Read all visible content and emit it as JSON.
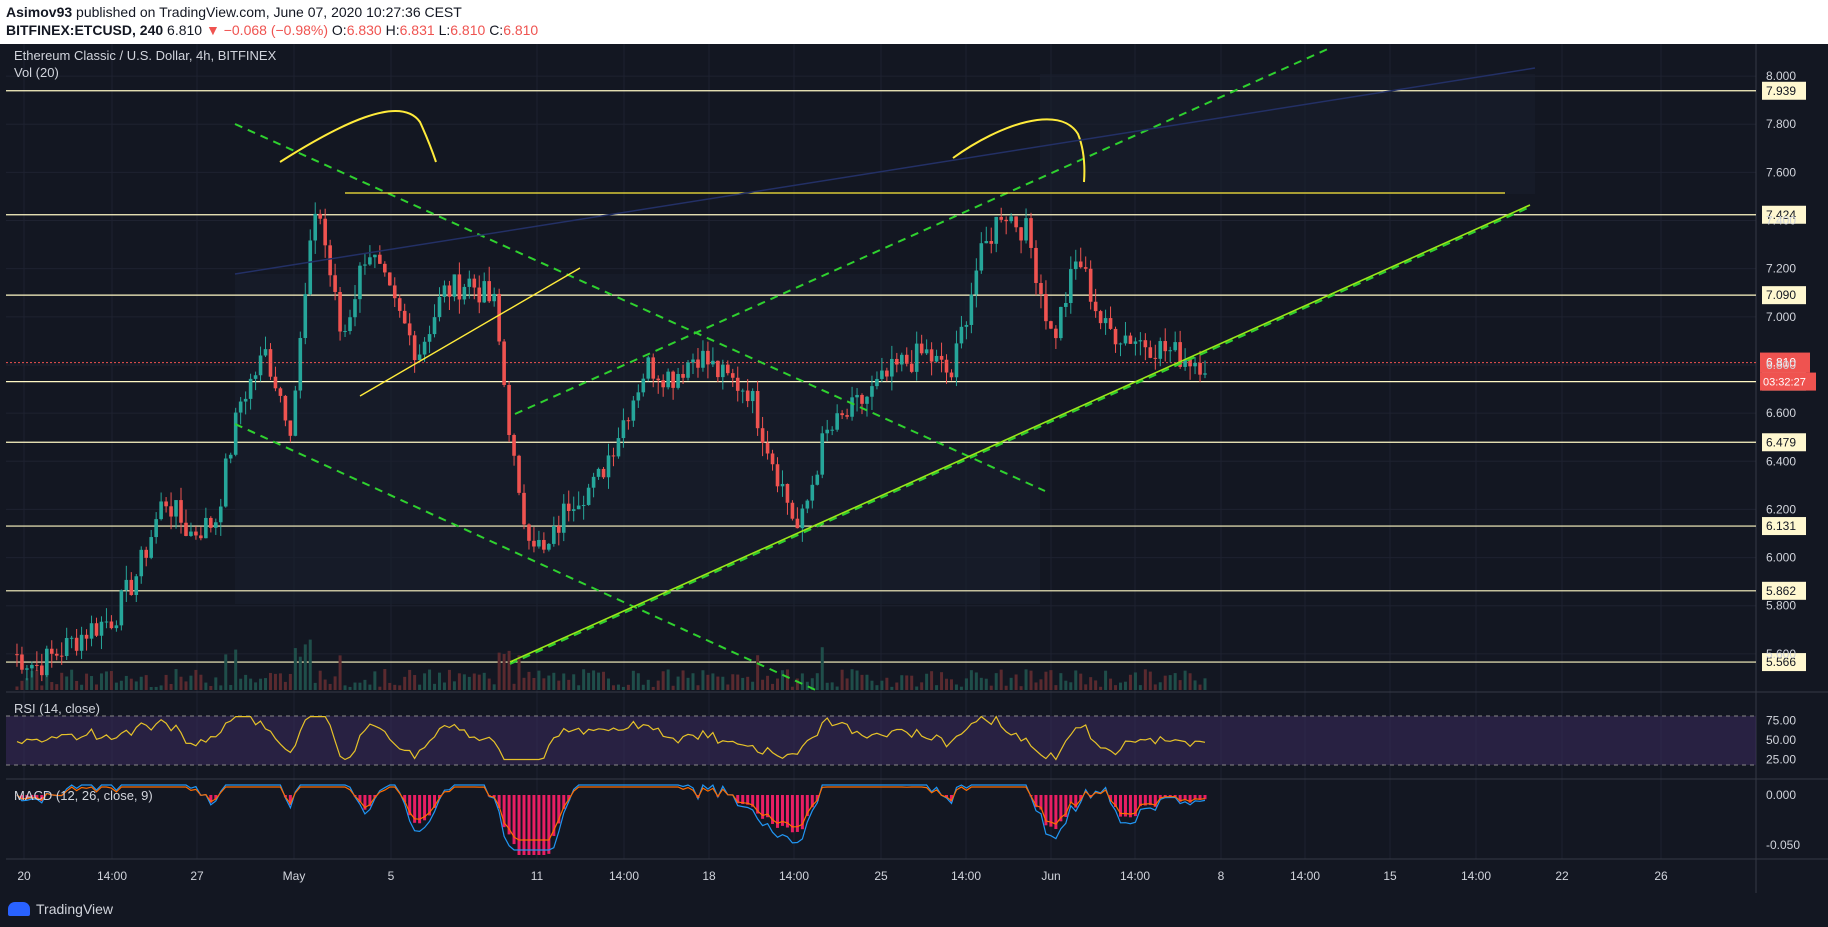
{
  "header": {
    "author": "Asimov93",
    "published_text": "published on TradingView.com, June 07, 2020 10:27:36 CEST",
    "symbol": "BITFINEX:ETCUSD, 240",
    "last_price": "6.810",
    "change_text": "▼ −0.068 (−0.98%)",
    "o_label": "O:",
    "o_value": "6.830",
    "h_label": "H:",
    "h_value": "6.831",
    "l_label": "L:",
    "l_value": "6.810",
    "c_label": "C:",
    "c_value": "6.810"
  },
  "legend": {
    "title": "Ethereum Classic / U.S. Dollar, 4h, BITFINEX",
    "vol": "Vol (20)",
    "rsi": "RSI (14, close)",
    "macd": "MACD (12, 26, close, 9)"
  },
  "footer": {
    "brand": "TradingView"
  },
  "colors": {
    "background": "#131722",
    "up": "#26a69a",
    "down": "#ef5350",
    "level_line": "#fff8c4",
    "trend_green": "#2fd12f",
    "yellow_mark": "#ffeb3b",
    "rsi_line": "#e6c229",
    "rsi_band": "#3a2a5c",
    "macd_hist": "#e91e63",
    "macd_line": "#2196f3",
    "signal_line": "#ff6d00",
    "price_label": "#ef5350"
  },
  "chart_data": {
    "type": "candlestick",
    "price_axis": {
      "ticks": [
        "8.000",
        "7.800",
        "7.600",
        "7.400",
        "7.200",
        "7.000",
        "6.800",
        "6.600",
        "6.400",
        "6.200",
        "6.000",
        "5.800",
        "5.600"
      ],
      "range": [
        5.45,
        8.1
      ]
    },
    "horizontal_levels": [
      "7.939",
      "7.424",
      "7.090",
      "6.731",
      "6.479",
      "6.131",
      "5.862",
      "5.566"
    ],
    "current_price": "6.810",
    "countdown": "03:32:27",
    "x_axis_labels": [
      "20",
      "14:00",
      "27",
      "May",
      "5",
      "11",
      "14:00",
      "18",
      "14:00",
      "25",
      "14:00",
      "Jun",
      "14:00",
      "8",
      "14:00",
      "15",
      "14:00",
      "22",
      "26"
    ],
    "rsi": {
      "ticks": [
        "75.00",
        "50.00",
        "25.00"
      ],
      "upper": 70,
      "lower": 30
    },
    "macd": {
      "ticks": [
        "0.000",
        "-0.050"
      ]
    },
    "price_path": [
      [
        "Apr 18",
        5.6
      ],
      [
        "Apr 19",
        5.55
      ],
      [
        "Apr 20",
        5.62
      ],
      [
        "Apr 22",
        5.7
      ],
      [
        "Apr 24",
        5.75
      ],
      [
        "Apr 26",
        5.95
      ],
      [
        "Apr 27",
        6.25
      ],
      [
        "Apr 28",
        6.1
      ],
      [
        "Apr 29",
        6.15
      ],
      [
        "Apr 30",
        6.65
      ],
      [
        "May 1",
        6.85
      ],
      [
        "May 2",
        6.55
      ],
      [
        "May 3",
        7.5
      ],
      [
        "May 4",
        6.9
      ],
      [
        "May 5",
        7.3
      ],
      [
        "May 6",
        7.05
      ],
      [
        "May 7",
        6.85
      ],
      [
        "May 8",
        7.1
      ],
      [
        "May 9",
        7.15
      ],
      [
        "May 10",
        7.05
      ],
      [
        "May 11",
        6.2
      ],
      [
        "May 12",
        6.0
      ],
      [
        "May 13",
        6.25
      ],
      [
        "May 14",
        6.3
      ],
      [
        "May 15",
        6.55
      ],
      [
        "May 16",
        6.8
      ],
      [
        "May 17",
        6.75
      ],
      [
        "May 18",
        6.85
      ],
      [
        "May 19",
        6.75
      ],
      [
        "May 20",
        6.7
      ],
      [
        "May 21",
        6.4
      ],
      [
        "May 22",
        6.1
      ],
      [
        "May 23",
        6.5
      ],
      [
        "May 24",
        6.6
      ],
      [
        "May 25",
        6.7
      ],
      [
        "May 26",
        6.8
      ],
      [
        "May 27",
        6.85
      ],
      [
        "May 28",
        6.75
      ],
      [
        "May 29",
        7.2
      ],
      [
        "May 30",
        7.45
      ],
      [
        "May 31",
        7.35
      ],
      [
        "Jun 1",
        6.9
      ],
      [
        "Jun 2",
        7.25
      ],
      [
        "Jun 3",
        6.95
      ],
      [
        "Jun 4",
        6.92
      ],
      [
        "Jun 5",
        6.88
      ],
      [
        "Jun 6",
        6.84
      ],
      [
        "Jun 7",
        6.81
      ]
    ]
  }
}
